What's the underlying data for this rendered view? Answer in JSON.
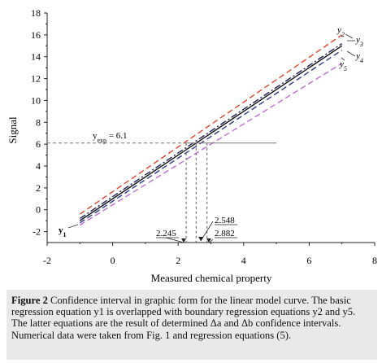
{
  "chart_data": {
    "type": "line",
    "xlabel": "Measured chemical property",
    "ylabel": "Signal",
    "xlim": [
      -2,
      8
    ],
    "ylim": [
      -3,
      18
    ],
    "xticks": [
      -2,
      0,
      2,
      4,
      6,
      8
    ],
    "yticks": [
      -2,
      0,
      2,
      4,
      6,
      8,
      10,
      12,
      14,
      16,
      18
    ],
    "grid": false,
    "series": [
      {
        "name": "y1",
        "color": "#111111",
        "dash": "solid",
        "x": [
          -1,
          7
        ],
        "y": [
          -1.0,
          15.0
        ]
      },
      {
        "name": "y2",
        "color": "#e0462c",
        "dash": "dashed",
        "x": [
          -1,
          7
        ],
        "y": [
          -0.4,
          16.0
        ]
      },
      {
        "name": "y3",
        "color": "#1f1f5a",
        "dash": "dash-dot",
        "x": [
          -1,
          7
        ],
        "y": [
          -0.8,
          15.2
        ]
      },
      {
        "name": "y4",
        "color": "#2a3a8a",
        "dash": "dashed",
        "x": [
          -1,
          7
        ],
        "y": [
          -1.2,
          14.6
        ]
      },
      {
        "name": "y5",
        "color": "#c26bd8",
        "dash": "dashed",
        "x": [
          -1,
          7
        ],
        "y": [
          -1.4,
          13.4
        ]
      }
    ],
    "annotations": {
      "yexp_label": "y",
      "yexp_sub": "exp",
      "yexp_value": " = 6.1",
      "yexp": 6.1,
      "x_values": [
        {
          "label": "2.245",
          "x": 2.245
        },
        {
          "label": "2.548",
          "x": 2.548
        },
        {
          "label": "2.882",
          "x": 2.882
        }
      ]
    }
  },
  "caption": {
    "figure_label": "Figure 2",
    "text": "Confidence interval in graphic form for the linear model curve. The basic regression equation y1 is overlapped with boundary regression equations y2 and y5. The latter equations are the result of determined Δa and Δb confidence intervals. Numerical data were taken from Fig. 1 and regression equations (5)."
  }
}
